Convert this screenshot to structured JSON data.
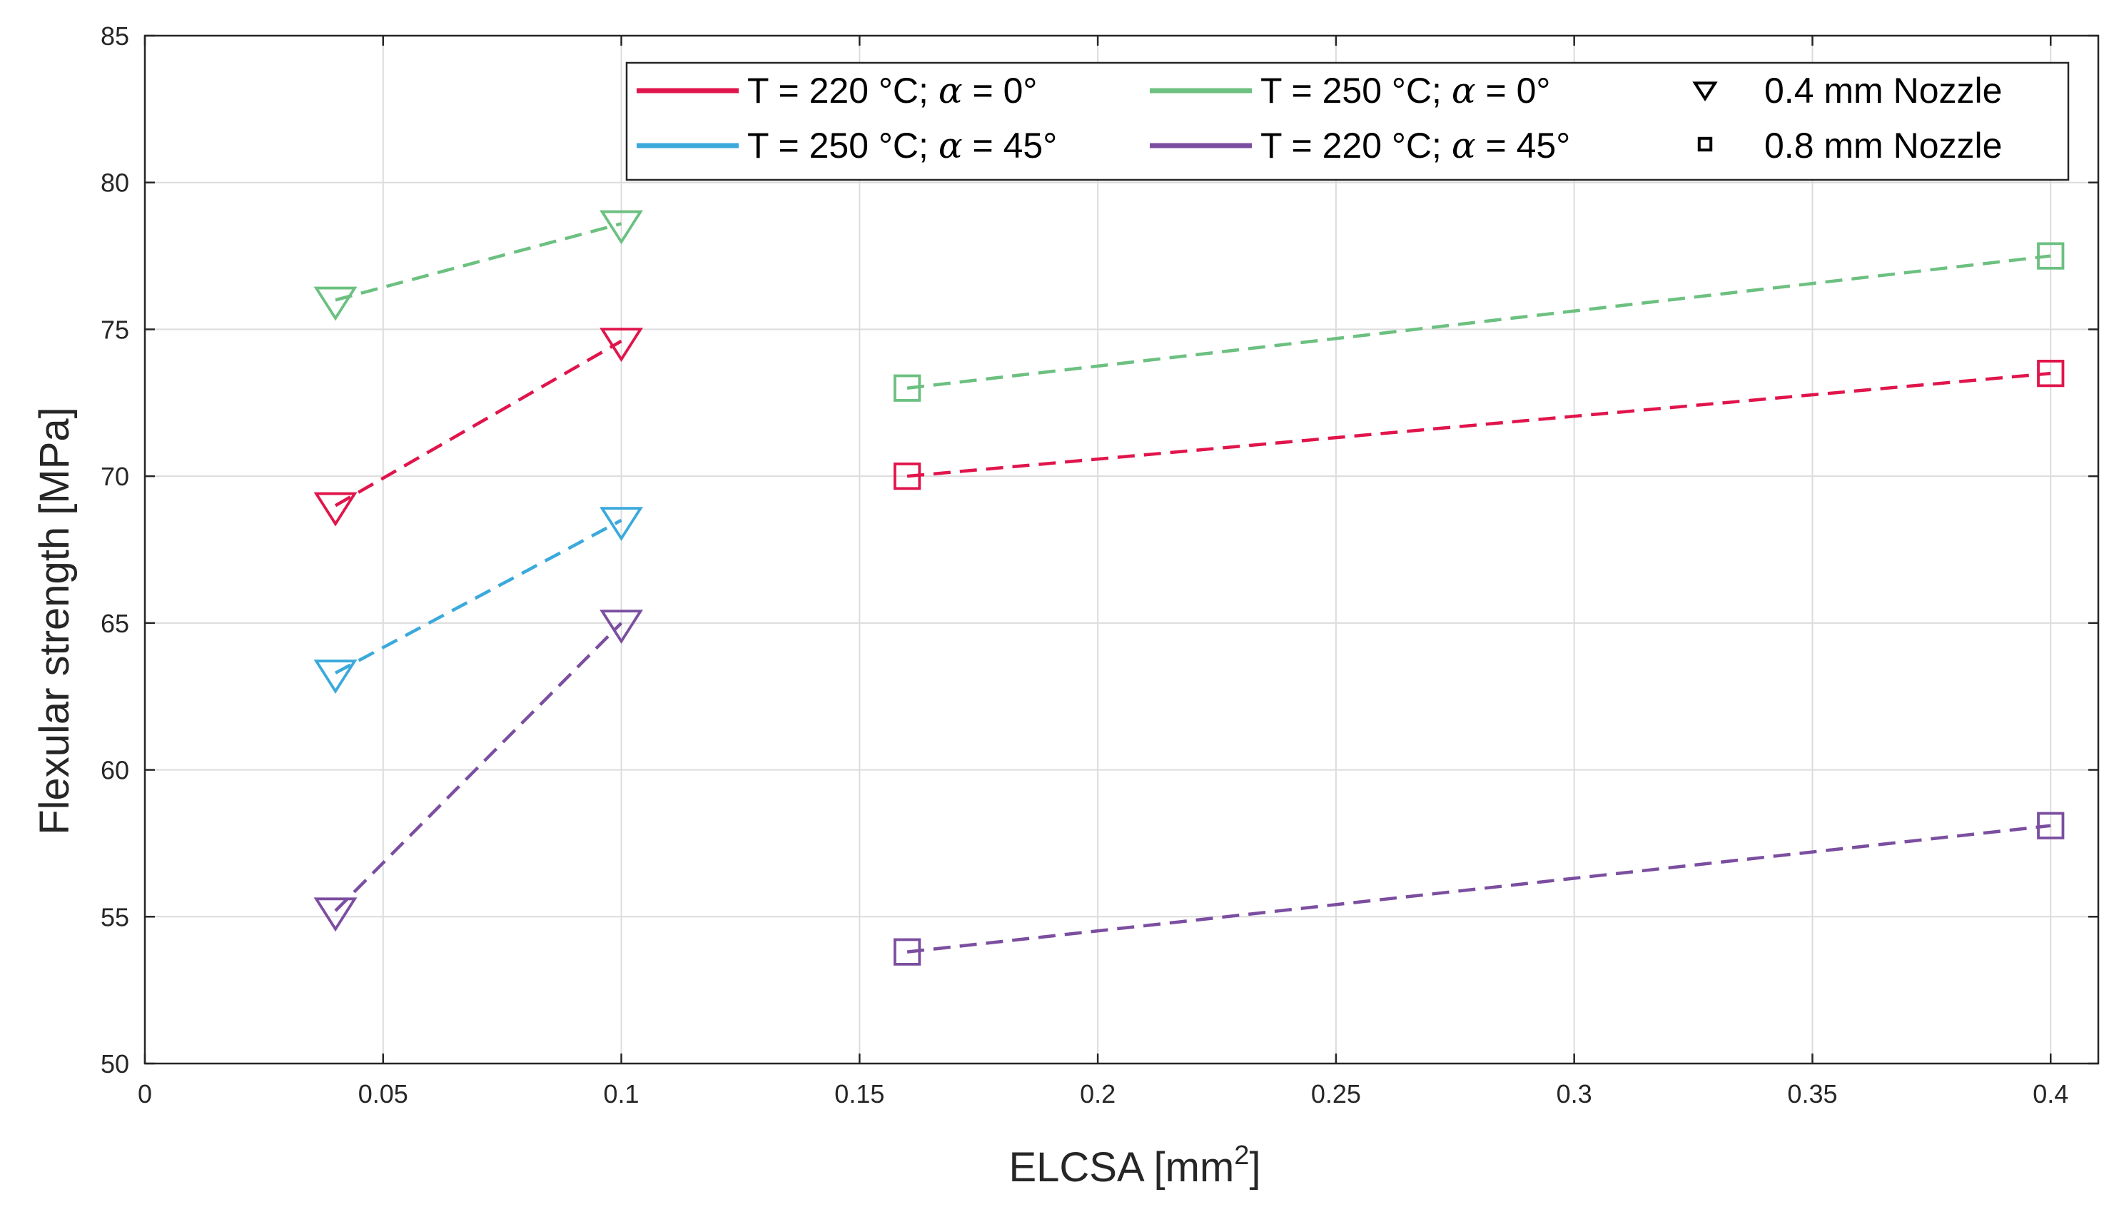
{
  "chart_data": {
    "type": "line",
    "title": "",
    "xlabel": "ELCSA [mm",
    "xlabel_sup": "2",
    "xlabel_end": "]",
    "ylabel": "Flexular strength [MPa]",
    "xlim": [
      0,
      0.41
    ],
    "ylim": [
      50,
      85
    ],
    "xticks": [
      0,
      0.05,
      0.1,
      0.15,
      0.2,
      0.25,
      0.3,
      0.35,
      0.4
    ],
    "xtick_labels": [
      "0",
      "0.05",
      "0.1",
      "0.15",
      "0.2",
      "0.25",
      "0.3",
      "0.35",
      "0.4"
    ],
    "yticks": [
      50,
      55,
      60,
      65,
      70,
      75,
      80,
      85
    ],
    "ytick_labels": [
      "50",
      "55",
      "60",
      "65",
      "70",
      "75",
      "80",
      "85"
    ],
    "grid": true,
    "legend_position": "top-right",
    "series": [
      {
        "name": "T = 220 °C; α = 0°",
        "label_pre": "T = 220 °C; ",
        "label_alpha": "α",
        "label_post": " = 0°",
        "color": "#e0154b",
        "nozzle": "0.4 mm Nozzle",
        "marker": "triangle-down",
        "x": [
          0.04,
          0.1
        ],
        "values": [
          69.0,
          74.6
        ]
      },
      {
        "name": "T = 220 °C; α = 0°",
        "color": "#e0154b",
        "nozzle": "0.8 mm Nozzle",
        "marker": "square",
        "x": [
          0.16,
          0.4
        ],
        "values": [
          70.0,
          73.5
        ]
      },
      {
        "name": "T = 250 °C; α = 0°",
        "label_pre": "T = 250 °C; ",
        "label_alpha": "α",
        "label_post": " = 0°",
        "color": "#6cc080",
        "nozzle": "0.4 mm Nozzle",
        "marker": "triangle-down",
        "x": [
          0.04,
          0.1
        ],
        "values": [
          76.0,
          78.6
        ]
      },
      {
        "name": "T = 250 °C; α = 0°",
        "color": "#6cc080",
        "nozzle": "0.8 mm Nozzle",
        "marker": "square",
        "x": [
          0.16,
          0.4
        ],
        "values": [
          73.0,
          77.5
        ]
      },
      {
        "name": "T = 250 °C; α = 45°",
        "label_pre": "T = 250 °C; ",
        "label_alpha": "α",
        "label_post": " = 45°",
        "color": "#3ba9dc",
        "nozzle": "0.4 mm Nozzle",
        "marker": "triangle-down",
        "x": [
          0.04,
          0.1
        ],
        "values": [
          63.3,
          68.5
        ]
      },
      {
        "name": "T = 220 °C; α = 45°",
        "label_pre": "T = 220 °C; ",
        "label_alpha": "α",
        "label_post": " = 45°",
        "color": "#7b4ea0",
        "nozzle": "0.4 mm Nozzle",
        "marker": "triangle-down",
        "x": [
          0.04,
          0.1
        ],
        "values": [
          55.2,
          65.0
        ]
      },
      {
        "name": "T = 220 °C; α = 45°",
        "color": "#7b4ea0",
        "nozzle": "0.8 mm Nozzle",
        "marker": "square",
        "x": [
          0.16,
          0.4
        ],
        "values": [
          53.8,
          58.1
        ]
      }
    ],
    "legend": {
      "lines": [
        {
          "label_pre": "T = 220 °C; ",
          "label_alpha": "α",
          "label_post": " = 0°",
          "color": "#e0154b"
        },
        {
          "label_pre": "T = 250 °C; ",
          "label_alpha": "α",
          "label_post": " = 0°",
          "color": "#6cc080"
        },
        {
          "label_pre": "T = 250 °C; ",
          "label_alpha": "α",
          "label_post": " = 45°",
          "color": "#3ba9dc"
        },
        {
          "label_pre": "T = 220 °C; ",
          "label_alpha": "α",
          "label_post": " = 45°",
          "color": "#7b4ea0"
        }
      ],
      "markers": [
        {
          "label": "0.4 mm Nozzle",
          "marker": "triangle-down"
        },
        {
          "label": "0.8 mm Nozzle",
          "marker": "square"
        }
      ]
    }
  }
}
